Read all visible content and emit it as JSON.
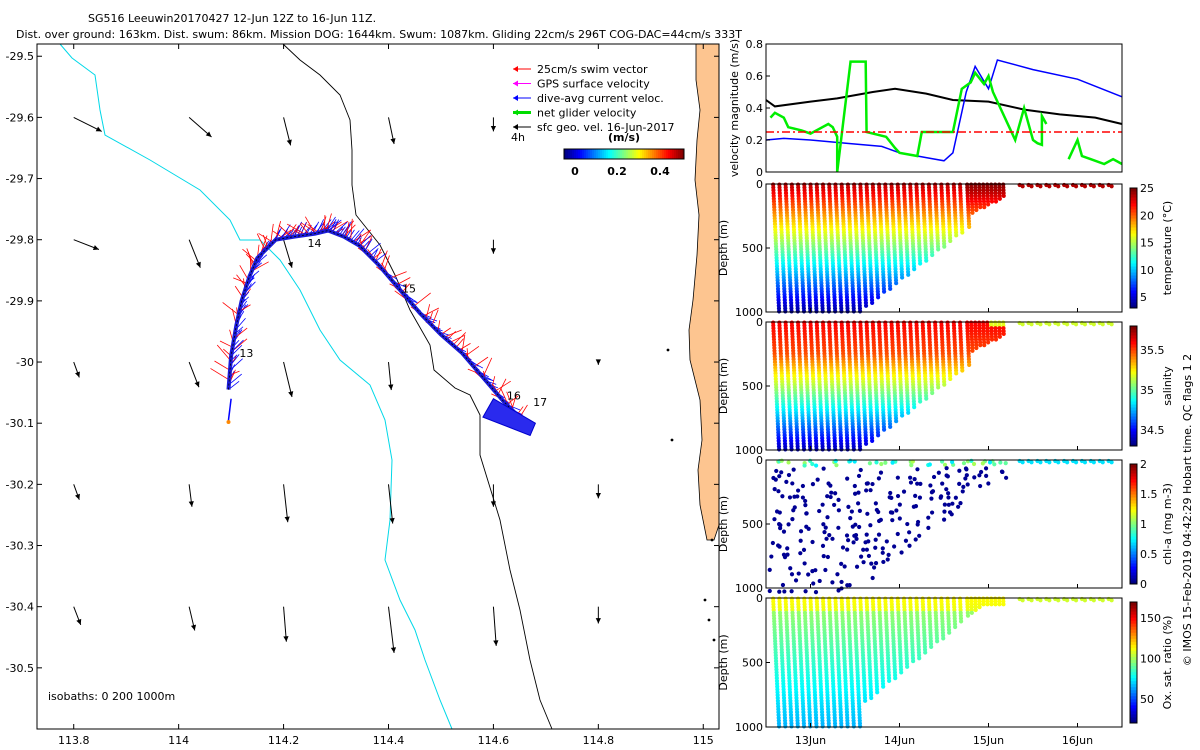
{
  "header": {
    "line1": "SG516 Leeuwin20170427 12-Jun 12Z to 16-Jun 11Z.",
    "line2": "Dist. over ground: 163km. Dist. swum: 86km. Mission DOG: 1644km. Swum: 1087km. Gliding 22cm/s 296T COG-DAC=44cm/s 333T"
  },
  "side_note": "© IMOS 15-Feb-2019 04:42:29 Hobart time. QC flags 1  2",
  "chart_data": [
    {
      "type": "scatter",
      "name": "map",
      "xlim": [
        113.73,
        115.03
      ],
      "ylim": [
        -30.6,
        -29.48
      ],
      "x_ticks": [
        113.8,
        114,
        114.2,
        114.4,
        114.6,
        114.8,
        115
      ],
      "x_tick_labels": [
        "113.8",
        "114",
        "114.2",
        "114.4",
        "114.6",
        "114.8",
        "115"
      ],
      "y_ticks": [
        -29.5,
        -29.6,
        -29.7,
        -29.8,
        -29.9,
        -30,
        -30.1,
        -30.2,
        -30.3,
        -30.4,
        -30.5
      ],
      "y_tick_labels": [
        "-29.5",
        "-29.6",
        "-29.7",
        "-29.8",
        "-29.9",
        "-30",
        "-30.1",
        "-30.2",
        "-30.3",
        "-30.4",
        "-30.5"
      ],
      "legend": {
        "placement": "top-right",
        "entries": [
          {
            "label": "25cm/s swim vector",
            "color": "#ff0000"
          },
          {
            "label": "GPS surface velocity",
            "color": "#ff00ff"
          },
          {
            "label": "dive-avg current veloc.",
            "color": "#0000ff"
          },
          {
            "label": "net glider velocity",
            "color": "#00dd00"
          },
          {
            "label": "sfc geo. vel. 16-Jun-2017",
            "color": "#000000"
          }
        ],
        "interval_label": "4h",
        "colorbar_title": "(m/s)",
        "colorbar_ticks": [
          "0",
          "0.2",
          "0.4"
        ]
      },
      "isobath_note": "isobaths: 0   200  1000m",
      "day_labels": [
        {
          "text": "13",
          "lon": 114.11,
          "lat": -29.985
        },
        {
          "text": "14",
          "lon": 114.24,
          "lat": -29.805
        },
        {
          "text": "15",
          "lon": 114.42,
          "lat": -29.88
        },
        {
          "text": "16",
          "lon": 114.62,
          "lat": -30.055
        },
        {
          "text": "17",
          "lon": 114.67,
          "lat": -30.065
        }
      ],
      "track": [
        [
          114.095,
          -30.045
        ],
        [
          114.1,
          -29.99
        ],
        [
          114.11,
          -29.94
        ],
        [
          114.12,
          -29.9
        ],
        [
          114.135,
          -29.86
        ],
        [
          114.15,
          -29.83
        ],
        [
          114.185,
          -29.8
        ],
        [
          114.22,
          -29.795
        ],
        [
          114.26,
          -29.79
        ],
        [
          114.285,
          -29.785
        ],
        [
          114.315,
          -29.795
        ],
        [
          114.345,
          -29.81
        ],
        [
          114.38,
          -29.84
        ],
        [
          114.42,
          -29.88
        ],
        [
          114.46,
          -29.92
        ],
        [
          114.5,
          -29.955
        ],
        [
          114.54,
          -29.985
        ],
        [
          114.58,
          -30.025
        ],
        [
          114.62,
          -30.065
        ],
        [
          114.655,
          -30.095
        ]
      ],
      "geo_grid_lon": [
        113.8,
        113.9,
        114.0,
        114.1,
        114.2,
        114.3,
        114.4,
        114.5,
        114.6,
        114.7,
        114.8,
        114.9
      ],
      "geo_grid_lat": [
        -29.6,
        -29.7,
        -29.8,
        -29.9,
        -30.0,
        -30.1,
        -30.2,
        -30.3,
        -30.4,
        -30.5
      ],
      "geo_vectors": [
        {
          "lon": 113.8,
          "lat": -29.6,
          "u": 0.2,
          "v": -0.1
        },
        {
          "lon": 114.02,
          "lat": -29.6,
          "u": 0.16,
          "v": -0.14
        },
        {
          "lon": 114.2,
          "lat": -29.6,
          "u": 0.05,
          "v": -0.2
        },
        {
          "lon": 114.4,
          "lat": -29.6,
          "u": 0.04,
          "v": -0.19
        },
        {
          "lon": 114.6,
          "lat": -29.6,
          "u": 0.0,
          "v": -0.1
        },
        {
          "lon": 113.8,
          "lat": -29.8,
          "u": 0.18,
          "v": -0.07
        },
        {
          "lon": 114.02,
          "lat": -29.8,
          "u": 0.08,
          "v": -0.2
        },
        {
          "lon": 114.2,
          "lat": -29.8,
          "u": 0.06,
          "v": -0.2
        },
        {
          "lon": 114.6,
          "lat": -29.8,
          "u": 0.0,
          "v": -0.1
        },
        {
          "lon": 113.8,
          "lat": -30.0,
          "u": 0.04,
          "v": -0.11
        },
        {
          "lon": 114.02,
          "lat": -30.0,
          "u": 0.07,
          "v": -0.18
        },
        {
          "lon": 114.2,
          "lat": -30.0,
          "u": 0.06,
          "v": -0.25
        },
        {
          "lon": 114.4,
          "lat": -30.0,
          "u": 0.02,
          "v": -0.2
        },
        {
          "lon": 114.8,
          "lat": -30.0,
          "u": 0.0,
          "v": -0.02
        },
        {
          "lon": 113.8,
          "lat": -30.2,
          "u": 0.04,
          "v": -0.11
        },
        {
          "lon": 114.02,
          "lat": -30.2,
          "u": 0.02,
          "v": -0.16
        },
        {
          "lon": 114.2,
          "lat": -30.2,
          "u": 0.03,
          "v": -0.27
        },
        {
          "lon": 114.4,
          "lat": -30.2,
          "u": 0.03,
          "v": -0.28
        },
        {
          "lon": 114.6,
          "lat": -30.2,
          "u": 0.0,
          "v": -0.16
        },
        {
          "lon": 114.8,
          "lat": -30.2,
          "u": 0.0,
          "v": -0.1
        },
        {
          "lon": 113.8,
          "lat": -30.4,
          "u": 0.05,
          "v": -0.13
        },
        {
          "lon": 114.02,
          "lat": -30.4,
          "u": 0.04,
          "v": -0.17
        },
        {
          "lon": 114.2,
          "lat": -30.4,
          "u": 0.02,
          "v": -0.25
        },
        {
          "lon": 114.4,
          "lat": -30.4,
          "u": 0.04,
          "v": -0.33
        },
        {
          "lon": 114.6,
          "lat": -30.4,
          "u": 0.02,
          "v": -0.28
        },
        {
          "lon": 114.8,
          "lat": -30.4,
          "u": 0.0,
          "v": -0.12
        }
      ]
    },
    {
      "type": "line",
      "name": "velocity magnitude",
      "ylabel": "velocity magnitude (m/s)",
      "ylim": [
        0,
        0.8
      ],
      "y_ticks": [
        "0",
        "0.2",
        "0.4",
        "0.6",
        "0.8"
      ],
      "x_range_days": [
        12.5,
        16.5
      ],
      "series": [
        {
          "name": "black",
          "color": "#000000",
          "x": [
            12.5,
            12.6,
            13.0,
            13.3,
            13.7,
            13.95,
            14.3,
            14.6,
            15.0,
            15.4,
            15.8,
            16.2,
            16.5
          ],
          "values": [
            0.45,
            0.41,
            0.44,
            0.46,
            0.5,
            0.52,
            0.49,
            0.45,
            0.44,
            0.39,
            0.36,
            0.34,
            0.3
          ]
        },
        {
          "name": "blue",
          "color": "#0000ff",
          "x": [
            12.5,
            12.7,
            13.0,
            13.4,
            13.8,
            14.0,
            14.3,
            14.5,
            14.6,
            14.75,
            14.85,
            15.0,
            15.1,
            15.5,
            16.0,
            16.5
          ],
          "values": [
            0.2,
            0.21,
            0.2,
            0.18,
            0.16,
            0.12,
            0.09,
            0.07,
            0.12,
            0.5,
            0.66,
            0.52,
            0.7,
            0.64,
            0.58,
            0.47
          ]
        },
        {
          "name": "green",
          "color": "#00ee00",
          "x": [
            12.55,
            12.6,
            12.7,
            12.75,
            12.9,
            13.0,
            13.2,
            13.25,
            13.3,
            13.3,
            13.45,
            13.5,
            13.62,
            13.63,
            13.85,
            13.95,
            14.0,
            14.2,
            14.25,
            14.6,
            14.7,
            14.8,
            14.85,
            14.95,
            15.0,
            15.05,
            15.3,
            15.4,
            15.5,
            15.55,
            15.6,
            15.6,
            15.65
          ],
          "values": [
            0.34,
            0.37,
            0.34,
            0.28,
            0.26,
            0.24,
            0.3,
            0.28,
            0.22,
            0.0,
            0.69,
            0.69,
            0.69,
            0.25,
            0.22,
            0.15,
            0.12,
            0.1,
            0.25,
            0.25,
            0.52,
            0.56,
            0.62,
            0.55,
            0.6,
            0.5,
            0.2,
            0.4,
            0.2,
            0.18,
            0.17,
            0.35,
            0.3
          ]
        },
        {
          "name": "green-late",
          "color": "#00ee00",
          "x": [
            15.9,
            16.0,
            16.05,
            16.15,
            16.3,
            16.4,
            16.5
          ],
          "values": [
            0.08,
            0.2,
            0.1,
            0.08,
            0.05,
            0.08,
            0.05
          ]
        },
        {
          "name": "red dash",
          "color": "#ff0000",
          "x": [
            12.5,
            16.5
          ],
          "values": [
            0.25,
            0.25
          ]
        }
      ]
    },
    {
      "type": "scatter",
      "name": "temperature",
      "ylabel": "Depth (m)",
      "colorbar_label": "temperature (°C)",
      "colorbar_ticks": [
        "5",
        "10",
        "15",
        "20",
        "25"
      ],
      "clim": [
        3,
        25
      ],
      "colormap": "jet"
    },
    {
      "type": "scatter",
      "name": "salinity",
      "ylabel": "Depth (m)",
      "colorbar_label": "salinity",
      "colorbar_ticks": [
        "34.5",
        "35",
        "35.5"
      ],
      "clim": [
        34.3,
        35.8
      ],
      "colormap": "jet"
    },
    {
      "type": "scatter",
      "name": "chl-a",
      "ylabel": "Depth (m)",
      "colorbar_label": "chl-a (mg m-3)",
      "colorbar_ticks": [
        "0",
        "0.5",
        "1",
        "1.5",
        "2"
      ],
      "clim": [
        0,
        2
      ],
      "colormap": "jet"
    },
    {
      "type": "scatter",
      "name": "oxygen",
      "ylabel": "Depth (m)",
      "colorbar_label": "Ox. sat. ratio (%)",
      "colorbar_ticks": [
        "50",
        "100",
        "150"
      ],
      "clim": [
        20,
        170
      ],
      "colormap": "jet"
    },
    {
      "type": "axis",
      "name": "section depth axis",
      "y_ticks": [
        "0",
        "500",
        "1000"
      ],
      "x_ticks": [
        13,
        14,
        15,
        16
      ],
      "x_tick_labels": [
        "13Jun",
        "14Jun",
        "15Jun",
        "16Jun"
      ]
    }
  ]
}
